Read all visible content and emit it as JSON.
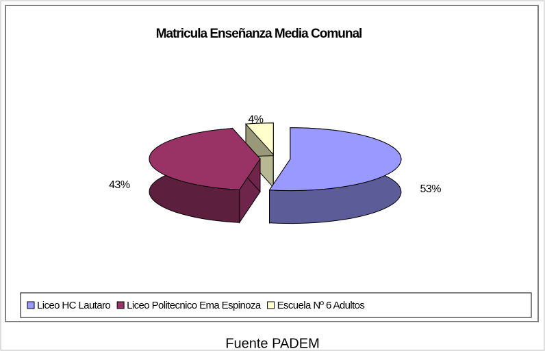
{
  "chart_data": {
    "type": "pie",
    "title": "Matricula Enseñanza Media Comunal",
    "categories": [
      "Liceo HC Lautaro",
      "Liceo Politecnico Ema Espinoza",
      "Escuela Nº 6 Adultos"
    ],
    "values": [
      53,
      43,
      4
    ],
    "value_labels": [
      "53%",
      "43%",
      "4%"
    ],
    "colors": [
      "#9999ff",
      "#993366",
      "#ffffcc"
    ],
    "legend": "bottom",
    "source": "Fuente PADEM"
  }
}
